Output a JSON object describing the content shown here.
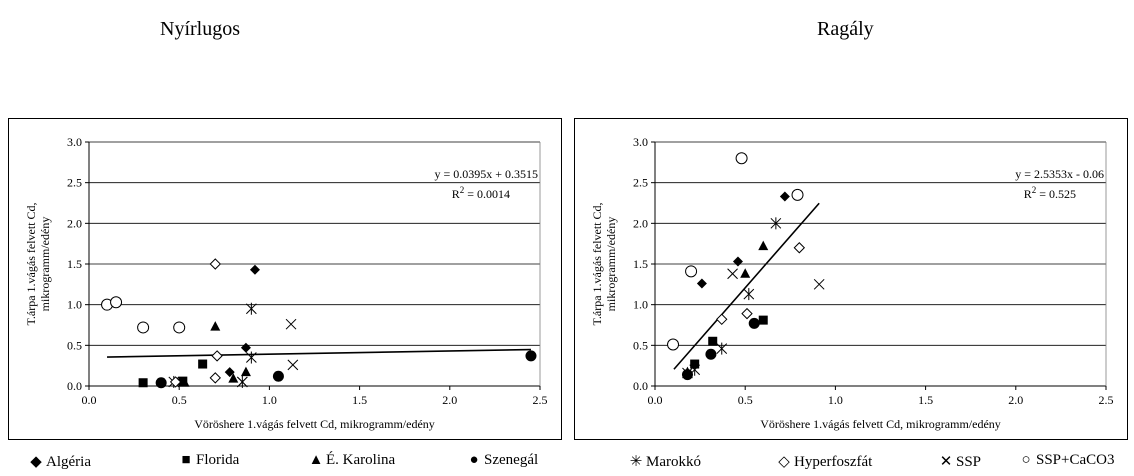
{
  "chart_data": [
    {
      "type": "scatter",
      "title": "Nyírlugos",
      "xlabel": "Vöröshere 1.vágás felvett Cd, mikrogramm/edény",
      "ylabel_lines": [
        "T.árpa 1.vágás felvett Cd,",
        "mikrogramm/edény"
      ],
      "xlim": [
        0,
        2.5
      ],
      "ylim": [
        0,
        3.0
      ],
      "xticks": [
        "0.0",
        "0.5",
        "1.0",
        "1.5",
        "2.0",
        "2.5"
      ],
      "yticks": [
        "0.0",
        "0.5",
        "1.0",
        "1.5",
        "2.0",
        "2.5",
        "3.0"
      ],
      "grid": "horizontal",
      "equation": "y = 0.0395x + 0.3515",
      "r2_label": "R",
      "r2_exp": "2",
      "r2_value": " = 0.0014",
      "trendline": {
        "slope": 0.0395,
        "intercept": 0.3515,
        "x": [
          0.1,
          2.45
        ]
      },
      "series": [
        {
          "name": "Algéria",
          "marker": "diamond",
          "points": [
            [
              0.92,
              1.43
            ],
            [
              0.87,
              0.47
            ],
            [
              0.78,
              0.17
            ]
          ]
        },
        {
          "name": "Florida",
          "marker": "square",
          "points": [
            [
              0.3,
              0.04
            ],
            [
              0.63,
              0.27
            ],
            [
              0.52,
              0.06
            ]
          ]
        },
        {
          "name": "É. Karolina",
          "marker": "triangle",
          "points": [
            [
              0.7,
              0.73
            ],
            [
              0.87,
              0.17
            ],
            [
              0.8,
              0.09
            ],
            [
              0.53,
              0.04
            ]
          ]
        },
        {
          "name": "Szenegál",
          "marker": "circle",
          "points": [
            [
              0.4,
              0.04
            ],
            [
              1.05,
              0.12
            ],
            [
              2.45,
              0.37
            ]
          ]
        },
        {
          "name": "Marokkó",
          "marker": "asterisk",
          "points": [
            [
              0.9,
              0.95
            ],
            [
              0.9,
              0.35
            ],
            [
              0.47,
              0.05
            ],
            [
              0.85,
              0.05
            ]
          ]
        },
        {
          "name": "Hyperfoszfát",
          "marker": "open-diamond",
          "points": [
            [
              0.7,
              1.5
            ],
            [
              0.71,
              0.37
            ],
            [
              0.7,
              0.1
            ],
            [
              0.48,
              0.05
            ]
          ]
        },
        {
          "name": "SSP",
          "marker": "x",
          "points": [
            [
              1.12,
              0.76
            ],
            [
              1.13,
              0.26
            ],
            [
              0.85,
              0.05
            ]
          ]
        },
        {
          "name": "SSP+CaCO3",
          "marker": "open-circle",
          "points": [
            [
              0.1,
              1.0
            ],
            [
              0.15,
              1.03
            ],
            [
              0.3,
              0.72
            ],
            [
              0.5,
              0.72
            ]
          ]
        }
      ]
    },
    {
      "type": "scatter",
      "title": "Ragály",
      "xlabel": "Vöröshere 1.vágás felvett Cd, mikrogramm/edény",
      "ylabel_lines": [
        "T.árpa 1.vágás felvett Cd,",
        "mikrogramm/edény"
      ],
      "xlim": [
        0,
        2.5
      ],
      "ylim": [
        0,
        3.0
      ],
      "xticks": [
        "0.0",
        "0.5",
        "1.0",
        "1.5",
        "2.0",
        "2.5"
      ],
      "yticks": [
        "0.0",
        "0.5",
        "1.0",
        "1.5",
        "2.0",
        "2.5",
        "3.0"
      ],
      "grid": "horizontal",
      "equation": "y = 2.5353x - 0.06",
      "r2_label": "R",
      "r2_exp": "2",
      "r2_value": " = 0.525",
      "trendline": {
        "slope": 2.5353,
        "intercept": -0.06,
        "x": [
          0.105,
          0.91
        ]
      },
      "series": [
        {
          "name": "Algéria",
          "marker": "diamond",
          "points": [
            [
              0.72,
              2.33
            ],
            [
              0.46,
              1.53
            ],
            [
              0.26,
              1.26
            ]
          ]
        },
        {
          "name": "Florida",
          "marker": "square",
          "points": [
            [
              0.6,
              0.81
            ],
            [
              0.32,
              0.55
            ],
            [
              0.22,
              0.27
            ]
          ]
        },
        {
          "name": "É. Karolina",
          "marker": "triangle",
          "points": [
            [
              0.6,
              1.72
            ],
            [
              0.5,
              1.38
            ],
            [
              0.18,
              0.17
            ]
          ]
        },
        {
          "name": "Szenegál",
          "marker": "circle",
          "points": [
            [
              0.55,
              0.77
            ],
            [
              0.31,
              0.39
            ],
            [
              0.18,
              0.14
            ]
          ]
        },
        {
          "name": "Marokkó",
          "marker": "asterisk",
          "points": [
            [
              0.67,
              2.0
            ],
            [
              0.52,
              1.13
            ],
            [
              0.37,
              0.46
            ],
            [
              0.22,
              0.2
            ]
          ]
        },
        {
          "name": "Hyperfoszfát",
          "marker": "open-diamond",
          "points": [
            [
              0.8,
              1.7
            ],
            [
              0.51,
              0.89
            ],
            [
              0.37,
              0.82
            ]
          ]
        },
        {
          "name": "SSP",
          "marker": "x",
          "points": [
            [
              0.91,
              1.25
            ],
            [
              0.43,
              1.38
            ],
            [
              0.18,
              0.16
            ]
          ]
        },
        {
          "name": "SSP+CaCO3",
          "marker": "open-circle",
          "points": [
            [
              0.48,
              2.8
            ],
            [
              0.79,
              2.35
            ],
            [
              0.2,
              1.41
            ],
            [
              0.1,
              0.51
            ]
          ]
        }
      ]
    }
  ],
  "legend": [
    {
      "name": "Algéria",
      "marker": "diamond",
      "symbol": "◆"
    },
    {
      "name": "Florida",
      "marker": "square",
      "symbol": "■"
    },
    {
      "name": "É. Karolina",
      "marker": "triangle",
      "symbol": "▲"
    },
    {
      "name": "Szenegál",
      "marker": "circle",
      "symbol": "●"
    },
    {
      "name": "Marokkó",
      "marker": "asterisk",
      "symbol": "✳"
    },
    {
      "name": "Hyperfoszfát",
      "marker": "open-diamond",
      "symbol": "◇"
    },
    {
      "name": "SSP",
      "marker": "x",
      "symbol": "✕"
    },
    {
      "name": "SSP+CaCO3",
      "marker": "open-circle",
      "symbol": "○"
    }
  ]
}
